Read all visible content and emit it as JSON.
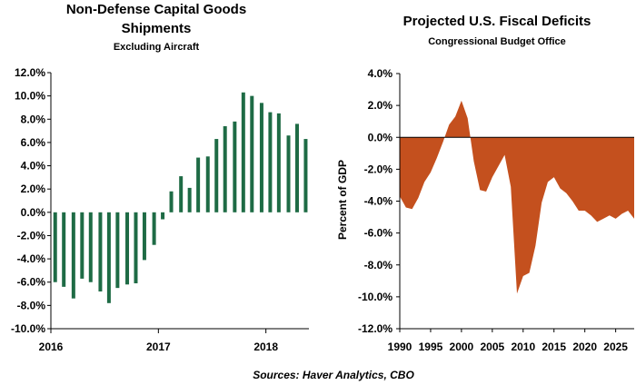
{
  "source_note": "Sources: Haver Analytics, CBO",
  "colors": {
    "bar": "#1e6b45",
    "area": "#c4501e",
    "axis": "#000000"
  },
  "chart_data": [
    {
      "type": "bar",
      "title": "Non-Defense Capital Goods",
      "title_line2": "Shipments",
      "subtitle": "Excluding Aircraft",
      "xlabel": "",
      "ylabel": "",
      "ylim": [
        -10,
        12
      ],
      "y_ticks": [
        "12.0%",
        "10.0%",
        "8.0%",
        "6.0%",
        "4.0%",
        "2.0%",
        "0.0%",
        "-2.0%",
        "-4.0%",
        "-6.0%",
        "-8.0%",
        "-10.0%"
      ],
      "y_tick_values": [
        12,
        10,
        8,
        6,
        4,
        2,
        0,
        -2,
        -4,
        -6,
        -8,
        -10
      ],
      "x_ticks": [
        "2016",
        "2017",
        "2018"
      ],
      "x_tick_values": [
        2016.0,
        2017.0,
        2018.0
      ],
      "x_range": [
        2016.0,
        2018.4
      ],
      "x": [
        2016.04,
        2016.12,
        2016.21,
        2016.29,
        2016.37,
        2016.46,
        2016.54,
        2016.62,
        2016.71,
        2016.79,
        2016.87,
        2016.96,
        2017.04,
        2017.12,
        2017.21,
        2017.29,
        2017.37,
        2017.46,
        2017.54,
        2017.62,
        2017.71,
        2017.79,
        2017.87,
        2017.96,
        2018.04,
        2018.12,
        2018.21,
        2018.29,
        2018.37
      ],
      "values": [
        -6.0,
        -6.4,
        -7.4,
        -5.7,
        -6.0,
        -6.8,
        -7.8,
        -6.5,
        -6.2,
        -6.1,
        -4.1,
        -2.8,
        -0.6,
        1.8,
        3.1,
        2.1,
        4.7,
        4.8,
        6.3,
        7.4,
        7.8,
        10.3,
        10.0,
        9.4,
        8.6,
        8.5,
        6.6,
        7.6,
        6.3
      ]
    },
    {
      "type": "area",
      "title": "Projected U.S. Fiscal Deficits",
      "subtitle": "Congressional Budget Office",
      "xlabel": "",
      "ylabel": "Percent of GDP",
      "ylim": [
        -12,
        4
      ],
      "y_ticks": [
        "4.0%",
        "2.0%",
        "0.0%",
        "-2.0%",
        "-4.0%",
        "-6.0%",
        "-8.0%",
        "-10.0%",
        "-12.0%"
      ],
      "y_tick_values": [
        4,
        2,
        0,
        -2,
        -4,
        -6,
        -8,
        -10,
        -12
      ],
      "x_ticks": [
        "1990",
        "1995",
        "2000",
        "2005",
        "2010",
        "2015",
        "2020",
        "2025"
      ],
      "x_tick_values": [
        1990,
        1995,
        2000,
        2005,
        2010,
        2015,
        2020,
        2025
      ],
      "x_range": [
        1990,
        2028
      ],
      "x": [
        1990,
        1991,
        1992,
        1993,
        1994,
        1995,
        1996,
        1997,
        1998,
        1999,
        2000,
        2001,
        2002,
        2003,
        2004,
        2005,
        2006,
        2007,
        2008,
        2009,
        2010,
        2011,
        2012,
        2013,
        2014,
        2015,
        2016,
        2017,
        2018,
        2019,
        2020,
        2021,
        2022,
        2023,
        2024,
        2025,
        2026,
        2027,
        2028
      ],
      "values": [
        -3.7,
        -4.4,
        -4.5,
        -3.8,
        -2.8,
        -2.2,
        -1.3,
        -0.3,
        0.8,
        1.3,
        2.3,
        1.2,
        -1.5,
        -3.3,
        -3.4,
        -2.5,
        -1.8,
        -1.1,
        -3.1,
        -9.8,
        -8.7,
        -8.5,
        -6.8,
        -4.1,
        -2.8,
        -2.5,
        -3.2,
        -3.5,
        -4.0,
        -4.6,
        -4.6,
        -4.9,
        -5.3,
        -5.1,
        -4.9,
        -5.1,
        -4.8,
        -4.6,
        -5.1
      ]
    }
  ]
}
